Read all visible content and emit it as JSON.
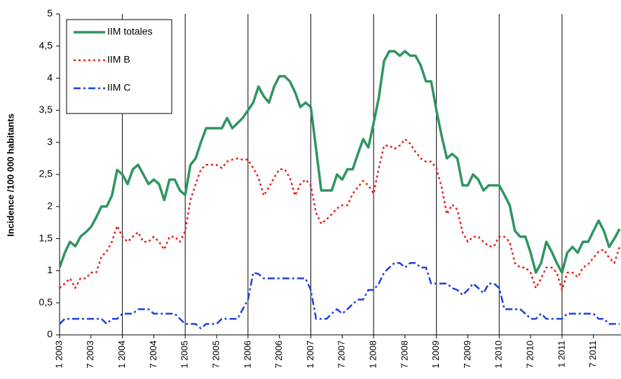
{
  "chart_data": {
    "type": "line",
    "y_label": "Incidence /100 000 habitants",
    "categories": [
      "1 2003",
      null,
      null,
      null,
      null,
      null,
      "7 2003",
      null,
      null,
      null,
      null,
      null,
      "1 2004",
      null,
      null,
      null,
      null,
      null,
      "7 2004",
      null,
      null,
      null,
      null,
      null,
      "1 2005",
      null,
      null,
      null,
      null,
      null,
      "7 2005",
      null,
      null,
      null,
      null,
      null,
      "1 2006",
      null,
      null,
      null,
      null,
      null,
      "7 2006",
      null,
      null,
      null,
      null,
      null,
      "1 2007",
      null,
      null,
      null,
      null,
      null,
      "7 2007",
      null,
      null,
      null,
      null,
      null,
      "1 2008",
      null,
      null,
      null,
      null,
      null,
      "7 2008",
      null,
      null,
      null,
      null,
      null,
      "1 2009",
      null,
      null,
      null,
      null,
      null,
      "7 2009",
      null,
      null,
      null,
      null,
      null,
      "1 2010",
      null,
      null,
      null,
      null,
      null,
      "7 2010",
      null,
      null,
      null,
      null,
      null,
      "1 2011",
      null,
      null,
      null,
      null,
      null,
      "7 2011",
      null,
      null,
      null,
      null,
      null
    ],
    "series": [
      {
        "name": "IIM totales",
        "color": "#2e9560",
        "dash": "none",
        "width": 3.5,
        "values": [
          1.05,
          1.28,
          1.45,
          1.38,
          1.53,
          1.6,
          1.68,
          1.83,
          2.0,
          2.0,
          2.17,
          2.57,
          2.5,
          2.35,
          2.58,
          2.65,
          2.5,
          2.35,
          2.42,
          2.35,
          2.1,
          2.42,
          2.42,
          2.25,
          2.18,
          2.65,
          2.75,
          3.0,
          3.22,
          3.22,
          3.22,
          3.22,
          3.38,
          3.22,
          3.3,
          3.38,
          3.5,
          3.62,
          3.87,
          3.72,
          3.62,
          3.87,
          4.03,
          4.03,
          3.95,
          3.78,
          3.55,
          3.62,
          3.55,
          2.9,
          2.25,
          2.25,
          2.25,
          2.5,
          2.42,
          2.58,
          2.58,
          2.82,
          3.05,
          2.92,
          3.3,
          3.7,
          4.27,
          4.42,
          4.42,
          4.35,
          4.42,
          4.35,
          4.35,
          4.2,
          3.95,
          3.95,
          3.5,
          3.1,
          2.75,
          2.82,
          2.75,
          2.33,
          2.33,
          2.5,
          2.42,
          2.25,
          2.33,
          2.33,
          2.33,
          2.18,
          2.02,
          1.62,
          1.53,
          1.53,
          1.28,
          0.97,
          1.12,
          1.45,
          1.3,
          1.12,
          0.97,
          1.28,
          1.37,
          1.28,
          1.45,
          1.45,
          1.62,
          1.78,
          1.62,
          1.37,
          1.5,
          1.65
        ]
      },
      {
        "name": "IIM B",
        "color": "#e8201f",
        "dash": "3,4",
        "width": 2.5,
        "values": [
          0.73,
          0.8,
          0.88,
          0.73,
          0.88,
          0.88,
          0.97,
          0.97,
          1.22,
          1.3,
          1.45,
          1.7,
          1.53,
          1.45,
          1.53,
          1.6,
          1.45,
          1.45,
          1.53,
          1.45,
          1.33,
          1.53,
          1.53,
          1.45,
          1.62,
          2.1,
          2.35,
          2.58,
          2.65,
          2.65,
          2.65,
          2.6,
          2.7,
          2.73,
          2.75,
          2.73,
          2.73,
          2.6,
          2.45,
          2.17,
          2.3,
          2.45,
          2.58,
          2.58,
          2.45,
          2.17,
          2.35,
          2.42,
          2.33,
          1.9,
          1.73,
          1.8,
          1.88,
          1.97,
          2.02,
          2.02,
          2.2,
          2.3,
          2.4,
          2.33,
          2.2,
          2.6,
          2.95,
          2.95,
          2.9,
          2.95,
          3.05,
          2.98,
          2.85,
          2.75,
          2.7,
          2.7,
          2.6,
          2.3,
          1.88,
          2.03,
          1.95,
          1.6,
          1.45,
          1.53,
          1.53,
          1.45,
          1.38,
          1.38,
          1.53,
          1.53,
          1.45,
          1.12,
          1.05,
          1.05,
          0.97,
          0.73,
          0.88,
          1.05,
          1.05,
          0.97,
          0.7,
          0.97,
          0.97,
          0.9,
          1.05,
          1.1,
          1.2,
          1.3,
          1.33,
          1.2,
          1.12,
          1.37
        ]
      },
      {
        "name": "IIM C",
        "color": "#1f3fe0",
        "dash": "10,4,3,4",
        "width": 2.5,
        "values": [
          0.17,
          0.25,
          0.25,
          0.25,
          0.25,
          0.25,
          0.25,
          0.25,
          0.25,
          0.17,
          0.25,
          0.25,
          0.33,
          0.33,
          0.33,
          0.4,
          0.4,
          0.4,
          0.33,
          0.33,
          0.33,
          0.33,
          0.33,
          0.25,
          0.17,
          0.17,
          0.17,
          0.1,
          0.17,
          0.17,
          0.17,
          0.25,
          0.25,
          0.25,
          0.25,
          0.4,
          0.55,
          0.97,
          0.95,
          0.88,
          0.88,
          0.88,
          0.88,
          0.88,
          0.88,
          0.88,
          0.88,
          0.88,
          0.7,
          0.25,
          0.25,
          0.25,
          0.33,
          0.4,
          0.33,
          0.4,
          0.48,
          0.55,
          0.55,
          0.7,
          0.7,
          0.8,
          0.97,
          1.05,
          1.12,
          1.12,
          1.05,
          1.12,
          1.12,
          1.05,
          1.05,
          0.8,
          0.8,
          0.8,
          0.8,
          0.73,
          0.7,
          0.62,
          0.7,
          0.8,
          0.73,
          0.65,
          0.8,
          0.8,
          0.73,
          0.4,
          0.4,
          0.4,
          0.4,
          0.33,
          0.25,
          0.25,
          0.33,
          0.25,
          0.25,
          0.25,
          0.25,
          0.33,
          0.33,
          0.33,
          0.33,
          0.33,
          0.33,
          0.25,
          0.25,
          0.17,
          0.17,
          0.17
        ]
      }
    ],
    "ylim": [
      0,
      5
    ],
    "yticks": [
      0,
      {
        "value": 0.5,
        "label": "0,5"
      },
      1,
      {
        "value": 1.5,
        "label": "1,5"
      },
      2,
      {
        "value": 2.5,
        "label": "2,5"
      },
      3,
      {
        "value": 3.5,
        "label": "3,5"
      },
      4,
      {
        "value": 4.5,
        "label": "4,5"
      },
      5
    ],
    "grid": "x",
    "legend": "upper left"
  }
}
